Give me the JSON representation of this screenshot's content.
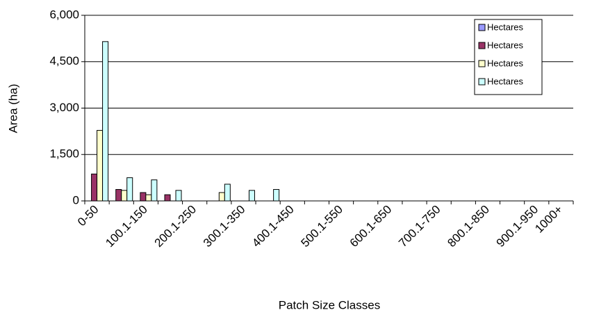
{
  "chart_data": {
    "type": "bar",
    "xlabel": "Patch Size Classes",
    "ylabel": "Area (ha)",
    "categories": [
      "0-50",
      null,
      "100.1-150",
      null,
      "200.1-250",
      null,
      "300.1-350",
      null,
      "400.1-450",
      null,
      "500.1-550",
      null,
      "600.1-650",
      null,
      "700.1-750",
      null,
      "800.1-850",
      null,
      "900.1-950",
      "1000+"
    ],
    "series": [
      {
        "name": "Hectares",
        "color": "#9999ff",
        "values": [
          0,
          0,
          0,
          0,
          0,
          0,
          0,
          0,
          0,
          0,
          0,
          0,
          0,
          0,
          0,
          0,
          0,
          0,
          0,
          0
        ]
      },
      {
        "name": "Hectares",
        "color": "#993366",
        "values": [
          870,
          370,
          270,
          200,
          0,
          0,
          0,
          0,
          0,
          0,
          0,
          0,
          0,
          0,
          0,
          0,
          0,
          0,
          0,
          0
        ]
      },
      {
        "name": "Hectares",
        "color": "#ffffcc",
        "values": [
          2280,
          340,
          200,
          0,
          0,
          270,
          0,
          0,
          0,
          0,
          0,
          0,
          0,
          0,
          0,
          0,
          0,
          0,
          0,
          0
        ]
      },
      {
        "name": "Hectares",
        "color": "#ccffff",
        "values": [
          5150,
          750,
          680,
          340,
          0,
          540,
          340,
          370,
          0,
          0,
          0,
          0,
          0,
          0,
          0,
          0,
          0,
          0,
          0,
          0
        ]
      }
    ],
    "ylim": [
      0,
      6000
    ],
    "yticks": [
      0,
      {
        "value": 1500,
        "label": "1,500"
      },
      {
        "value": 3000,
        "label": "3,000"
      },
      {
        "value": 4500,
        "label": "4,500"
      },
      {
        "value": 6000,
        "label": "6,000"
      }
    ],
    "grid": true,
    "legend": "top-right"
  }
}
